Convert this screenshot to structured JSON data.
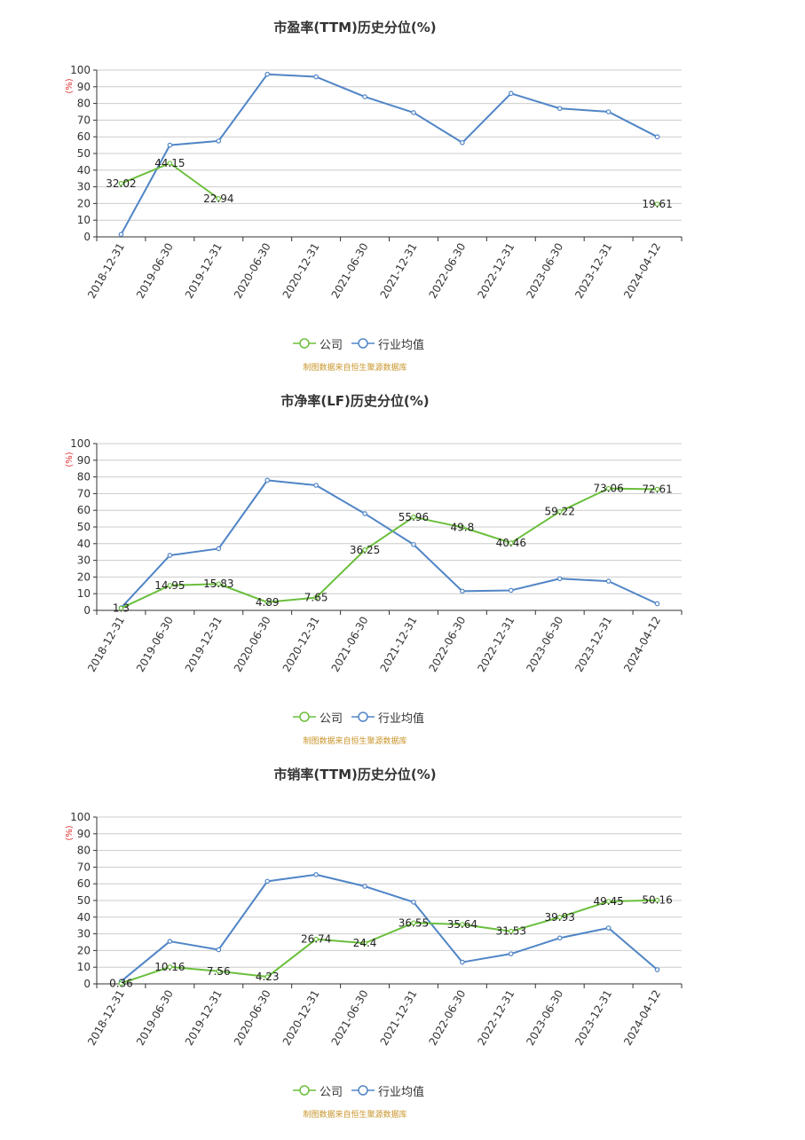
{
  "colors": {
    "company": "#6abf3c",
    "industry": "#5085c6",
    "grid": "#cccccc",
    "axis": "#333333",
    "source": "#c8952a",
    "unit": "#e03030"
  },
  "chart_data": [
    {
      "type": "line",
      "title": "市盈率(TTM)历史分位(%)",
      "ylabel": "(%)",
      "ylim": [
        0,
        100
      ],
      "yticks": [
        0,
        10,
        20,
        30,
        40,
        50,
        60,
        70,
        80,
        90,
        100
      ],
      "categories": [
        "2018-12-31",
        "2019-06-30",
        "2019-12-31",
        "2020-06-30",
        "2020-12-31",
        "2021-06-30",
        "2021-12-31",
        "2022-06-30",
        "2022-12-31",
        "2023-06-30",
        "2023-12-31",
        "2024-04-12"
      ],
      "grid": true,
      "legend_position": "bottom-center",
      "series": [
        {
          "name": "公司",
          "key": "company",
          "values": [
            32.02,
            44.15,
            22.94,
            null,
            null,
            null,
            null,
            null,
            null,
            null,
            null,
            19.61
          ],
          "labels": [
            "32.02",
            "44.15",
            "22.94",
            "",
            "",
            "",
            "",
            "",
            "",
            "",
            "",
            "19.61"
          ]
        },
        {
          "name": "行业均值",
          "key": "industry",
          "values": [
            1.5,
            55,
            57.5,
            97.5,
            96,
            84,
            74.5,
            56.5,
            86,
            77,
            75,
            60
          ]
        }
      ],
      "source": "制图数据来自恒生聚源数据库"
    },
    {
      "type": "line",
      "title": "市净率(LF)历史分位(%)",
      "ylabel": "(%)",
      "ylim": [
        0,
        100
      ],
      "yticks": [
        0,
        10,
        20,
        30,
        40,
        50,
        60,
        70,
        80,
        90,
        100
      ],
      "categories": [
        "2018-12-31",
        "2019-06-30",
        "2019-12-31",
        "2020-06-30",
        "2020-12-31",
        "2021-06-30",
        "2021-12-31",
        "2022-06-30",
        "2022-12-31",
        "2023-06-30",
        "2023-12-31",
        "2024-04-12"
      ],
      "grid": true,
      "legend_position": "bottom-center",
      "series": [
        {
          "name": "公司",
          "key": "company",
          "values": [
            1.3,
            14.95,
            15.83,
            4.89,
            7.65,
            36.25,
            55.96,
            49.8,
            40.46,
            59.22,
            73.06,
            72.61
          ],
          "labels": [
            "1.3",
            "14.95",
            "15.83",
            "4.89",
            "7.65",
            "36.25",
            "55.96",
            "49.8",
            "40.46",
            "59.22",
            "73.06",
            "72.61"
          ]
        },
        {
          "name": "行业均值",
          "key": "industry",
          "values": [
            1.5,
            33,
            37,
            78,
            75,
            58,
            39.5,
            11.5,
            12,
            19,
            17.5,
            4
          ]
        }
      ],
      "source": "制图数据来自恒生聚源数据库"
    },
    {
      "type": "line",
      "title": "市销率(TTM)历史分位(%)",
      "ylabel": "(%)",
      "ylim": [
        0,
        100
      ],
      "yticks": [
        0,
        10,
        20,
        30,
        40,
        50,
        60,
        70,
        80,
        90,
        100
      ],
      "categories": [
        "2018-12-31",
        "2019-06-30",
        "2019-12-31",
        "2020-06-30",
        "2020-12-31",
        "2021-06-30",
        "2021-12-31",
        "2022-06-30",
        "2022-12-31",
        "2023-06-30",
        "2023-12-31",
        "2024-04-12"
      ],
      "grid": true,
      "legend_position": "bottom-center",
      "series": [
        {
          "name": "公司",
          "key": "company",
          "values": [
            0.36,
            10.16,
            7.56,
            4.23,
            26.74,
            24.4,
            36.55,
            35.64,
            31.53,
            39.93,
            49.45,
            50.16
          ],
          "labels": [
            "0.36",
            "10.16",
            "7.56",
            "4.23",
            "26.74",
            "24.4",
            "36.55",
            "35.64",
            "31.53",
            "39.93",
            "49.45",
            "50.16"
          ]
        },
        {
          "name": "行业均值",
          "key": "industry",
          "values": [
            1.5,
            25.5,
            20.5,
            61.5,
            65.5,
            58.5,
            49,
            13,
            18,
            27.5,
            33.5,
            8.5
          ]
        }
      ],
      "source": "制图数据来自恒生聚源数据库"
    }
  ]
}
